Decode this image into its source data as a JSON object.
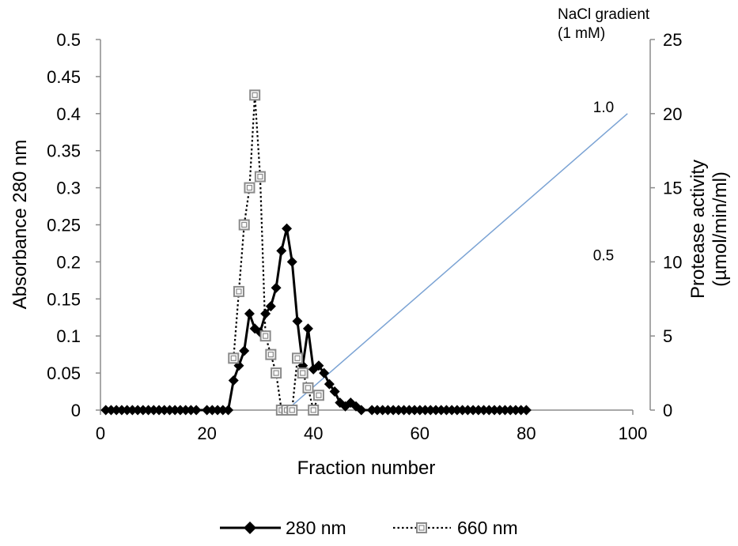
{
  "chart_data": {
    "type": "line",
    "xlabel": "Fraction number",
    "ylabel": "Absorbance 280 nm",
    "y2label_line1": "Protease activity",
    "y2label_line2": "(µmol/min/ml)",
    "xlim": [
      0,
      100
    ],
    "ylim": [
      0,
      0.5
    ],
    "y2lim": [
      0,
      25
    ],
    "grid": false,
    "legend_position": "bottom",
    "x_ticks": [
      "0",
      "20",
      "40",
      "60",
      "80",
      "100"
    ],
    "y_ticks": [
      "0",
      "0.05",
      "0.1",
      "0.15",
      "0.2",
      "0.25",
      "0.3",
      "0.35",
      "0.4",
      "0.45",
      "0.5"
    ],
    "y2_ticks": [
      "0",
      "5",
      "10",
      "15",
      "20",
      "25"
    ],
    "gradient": {
      "label_line1": "NaCl gradient",
      "label_line2": "(1 mM)",
      "tick_labels": [
        {
          "label": "0.5",
          "y2": 10
        },
        {
          "label": "1.0",
          "y2": 20
        }
      ],
      "x": [
        35,
        99
      ],
      "y2": [
        0,
        20
      ],
      "color": "#7ba3d4"
    },
    "series": [
      {
        "name": "280 nm",
        "marker": "diamond",
        "style": "solid",
        "color": "#000000",
        "x": [
          1,
          2,
          3,
          4,
          5,
          6,
          7,
          8,
          9,
          10,
          11,
          12,
          13,
          14,
          15,
          16,
          17,
          18,
          20,
          21,
          22,
          23,
          24,
          25,
          26,
          27,
          28,
          29,
          30,
          31,
          32,
          33,
          34,
          35,
          36,
          37,
          38,
          39,
          40,
          41,
          42,
          43,
          44,
          45,
          46,
          47,
          48,
          49,
          51,
          52,
          53,
          54,
          55,
          56,
          57,
          58,
          59,
          60,
          61,
          62,
          63,
          64,
          65,
          66,
          67,
          68,
          69,
          70,
          71,
          72,
          73,
          74,
          75,
          76,
          77,
          78,
          79,
          80
        ],
        "y": [
          0,
          0,
          0,
          0,
          0,
          0,
          0,
          0,
          0,
          0,
          0,
          0,
          0,
          0,
          0,
          0,
          0,
          0,
          0,
          0,
          0,
          0,
          0,
          0.04,
          0.06,
          0.08,
          0.13,
          0.11,
          0.105,
          0.13,
          0.14,
          0.165,
          0.215,
          0.245,
          0.2,
          0.12,
          0.06,
          0.11,
          0.055,
          0.06,
          0.05,
          0.035,
          0.025,
          0.01,
          0.005,
          0.01,
          0.005,
          0,
          0,
          0,
          0,
          0,
          0,
          0,
          0,
          0,
          0,
          0,
          0,
          0,
          0,
          0,
          0,
          0,
          0,
          0,
          0,
          0,
          0,
          0,
          0,
          0,
          0,
          0,
          0,
          0,
          0,
          0
        ]
      },
      {
        "name": "660 nm",
        "marker": "square",
        "style": "dotted",
        "color": "#000000",
        "x": [
          25,
          26,
          27,
          28,
          29,
          30,
          31,
          32,
          33,
          34,
          35,
          36,
          37,
          38,
          39,
          40,
          41
        ],
        "y": [
          0.07,
          0.16,
          0.25,
          0.3,
          0.425,
          0.315,
          0.1,
          0.075,
          0.05,
          0,
          0,
          0,
          0.07,
          0.05,
          0.03,
          0,
          0.02
        ]
      }
    ]
  }
}
